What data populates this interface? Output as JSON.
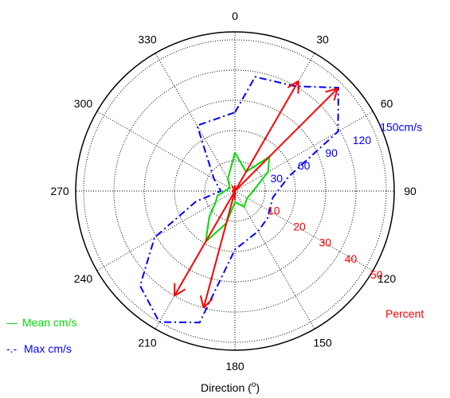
{
  "chart_data": {
    "type": "polar",
    "title": "",
    "xlabel_text": "Direction (",
    "xlabel_sup": "o",
    "xlabel_close": ")",
    "angle_ticks": [
      "0",
      "30",
      "60",
      "90",
      "120",
      "150",
      "180",
      "210",
      "240",
      "270",
      "300",
      "330"
    ],
    "speed_axis": {
      "ticks": [
        "30",
        "60",
        "90",
        "120"
      ],
      "last_tick": "150cm/s",
      "max": 150,
      "color": "#0000ff"
    },
    "percent_axis": {
      "ticks": [
        "10",
        "20",
        "30",
        "40",
        "50"
      ],
      "title": "Percent",
      "max": 50,
      "color": "#ff0000"
    },
    "legend": [
      {
        "label": "Mean cm/s",
        "marker": "—",
        "color": "#00dd00"
      },
      {
        "label": "Max cm/s",
        "marker": "-.-",
        "color": "#0000ff"
      }
    ],
    "series": [
      {
        "name": "Mean cm/s",
        "color": "#00dd00",
        "style": "solid",
        "points": [
          [
            0,
            38
          ],
          [
            30,
            22
          ],
          [
            45,
            48
          ],
          [
            60,
            38
          ],
          [
            90,
            18
          ],
          [
            120,
            14
          ],
          [
            150,
            18
          ],
          [
            180,
            11
          ],
          [
            195,
            33
          ],
          [
            210,
            58
          ],
          [
            225,
            36
          ],
          [
            240,
            22
          ],
          [
            255,
            18
          ],
          [
            270,
            10
          ],
          [
            300,
            6
          ],
          [
            330,
            14
          ]
        ]
      },
      {
        "name": "Max cm/s",
        "color": "#0000ff",
        "style": "dashdot",
        "points": [
          [
            0,
            78
          ],
          [
            10,
            115
          ],
          [
            30,
            120
          ],
          [
            45,
            145
          ],
          [
            60,
            118
          ],
          [
            75,
            55
          ],
          [
            100,
            38
          ],
          [
            130,
            42
          ],
          [
            150,
            46
          ],
          [
            180,
            58
          ],
          [
            195,
            135
          ],
          [
            210,
            150
          ],
          [
            225,
            133
          ],
          [
            240,
            92
          ],
          [
            255,
            40
          ],
          [
            270,
            14
          ],
          [
            300,
            24
          ],
          [
            330,
            75
          ]
        ]
      }
    ],
    "percent_arrows": [
      {
        "direction": 45,
        "percent": 48
      },
      {
        "direction": 30,
        "percent": 42
      },
      {
        "direction": 210,
        "percent": 40
      },
      {
        "direction": 195,
        "percent": 40
      },
      {
        "direction": 0,
        "percent": 2
      },
      {
        "direction": 180,
        "percent": 3
      },
      {
        "direction": 270,
        "percent": 1
      },
      {
        "direction": 330,
        "percent": 2
      }
    ]
  }
}
